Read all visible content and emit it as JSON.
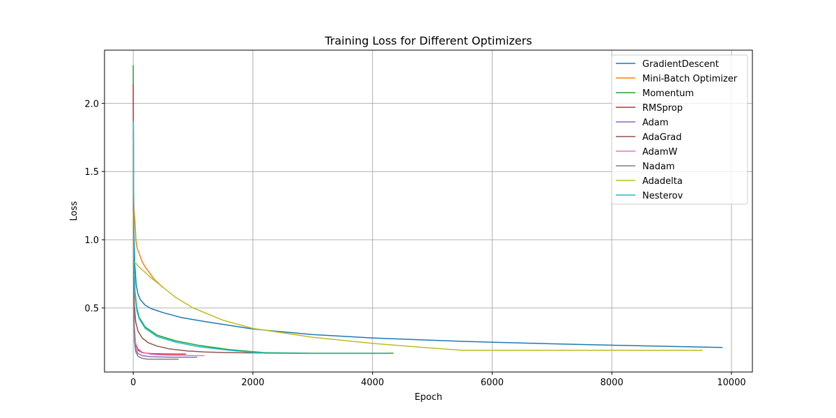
{
  "chart_data": {
    "type": "line",
    "title": "Training Loss for Different Optimizers",
    "xlabel": "Epoch",
    "ylabel": "Loss",
    "xlim": [
      -480,
      10350
    ],
    "ylim": [
      0.03,
      2.39
    ],
    "xticks": [
      0,
      2000,
      4000,
      6000,
      8000,
      10000
    ],
    "xtick_labels": [
      "0",
      "2000",
      "4000",
      "6000",
      "8000",
      "10000"
    ],
    "yticks": [
      0.5,
      1.0,
      1.5,
      2.0
    ],
    "ytick_labels": [
      "0.5",
      "1.0",
      "1.5",
      "2.0"
    ],
    "grid": true,
    "legend_position": "top-right",
    "series": [
      {
        "name": "GradientDescent",
        "color": "#1f77b4",
        "x": [
          0,
          10,
          25,
          50,
          80,
          120,
          200,
          300,
          500,
          800,
          1200,
          2000,
          3000,
          4000,
          5500,
          7000,
          8500,
          9850
        ],
        "y": [
          1.87,
          1.1,
          0.82,
          0.67,
          0.6,
          0.56,
          0.52,
          0.495,
          0.465,
          0.43,
          0.4,
          0.345,
          0.305,
          0.28,
          0.255,
          0.237,
          0.222,
          0.21
        ]
      },
      {
        "name": "Mini-Batch Optimizer",
        "color": "#ff7f0e",
        "x": [
          0,
          5,
          10,
          20,
          30,
          45,
          60,
          80,
          100,
          130,
          160,
          200,
          250,
          300,
          350,
          400,
          450,
          490
        ],
        "y": [
          1.5,
          1.38,
          1.25,
          1.18,
          1.12,
          1.0,
          0.95,
          0.92,
          0.9,
          0.86,
          0.83,
          0.8,
          0.77,
          0.74,
          0.71,
          0.69,
          0.67,
          0.65
        ]
      },
      {
        "name": "Momentum",
        "color": "#2ca02c",
        "x": [
          0,
          3,
          8,
          15,
          30,
          60,
          100,
          200,
          400,
          700,
          1100,
          1600,
          2200,
          3000,
          3800,
          4350
        ],
        "y": [
          2.28,
          1.6,
          1.05,
          0.8,
          0.62,
          0.5,
          0.43,
          0.36,
          0.3,
          0.26,
          0.225,
          0.195,
          0.172,
          0.168,
          0.168,
          0.168
        ]
      },
      {
        "name": "RMSprop",
        "color": "#d62728",
        "x": [
          0,
          3,
          6,
          10,
          20,
          40,
          80,
          150,
          300,
          500,
          700,
          880
        ],
        "y": [
          2.14,
          1.5,
          1.0,
          0.6,
          0.35,
          0.23,
          0.19,
          0.172,
          0.165,
          0.163,
          0.162,
          0.162
        ]
      },
      {
        "name": "Adam",
        "color": "#9467bd",
        "x": [
          0,
          3,
          6,
          10,
          20,
          40,
          80,
          150,
          300,
          500,
          700,
          900,
          1070
        ],
        "y": [
          1.7,
          1.2,
          0.8,
          0.5,
          0.3,
          0.2,
          0.165,
          0.15,
          0.142,
          0.14,
          0.139,
          0.139,
          0.139
        ]
      },
      {
        "name": "AdaGrad",
        "color": "#8c564b",
        "x": [
          0,
          5,
          10,
          20,
          40,
          80,
          150,
          250,
          400,
          600,
          900,
          1200,
          1500,
          1800,
          2130
        ],
        "y": [
          1.8,
          1.05,
          0.72,
          0.52,
          0.4,
          0.33,
          0.28,
          0.245,
          0.22,
          0.2,
          0.185,
          0.177,
          0.173,
          0.171,
          0.17
        ]
      },
      {
        "name": "AdamW",
        "color": "#e377c2",
        "x": [
          0,
          3,
          6,
          10,
          20,
          40,
          80,
          150,
          300,
          500,
          700,
          900,
          1100,
          1190
        ],
        "y": [
          1.8,
          1.3,
          0.9,
          0.55,
          0.33,
          0.24,
          0.2,
          0.175,
          0.16,
          0.155,
          0.152,
          0.151,
          0.15,
          0.15
        ]
      },
      {
        "name": "Nadam",
        "color": "#7f7f7f",
        "x": [
          0,
          3,
          6,
          10,
          20,
          40,
          80,
          150,
          250,
          400,
          600,
          760
        ],
        "y": [
          1.7,
          1.1,
          0.7,
          0.45,
          0.26,
          0.18,
          0.145,
          0.13,
          0.124,
          0.124,
          0.124,
          0.124
        ]
      },
      {
        "name": "Adadelta",
        "color": "#bcbd22",
        "x": [
          0,
          5,
          15,
          30,
          60,
          100,
          200,
          300,
          500,
          700,
          1000,
          1500,
          2000,
          3000,
          4000,
          5000,
          5500,
          7000,
          8500,
          9520
        ],
        "y": [
          1.2,
          0.9,
          0.84,
          0.83,
          0.82,
          0.8,
          0.76,
          0.72,
          0.65,
          0.58,
          0.5,
          0.41,
          0.35,
          0.285,
          0.24,
          0.205,
          0.19,
          0.19,
          0.19,
          0.19
        ]
      },
      {
        "name": "Nesterov",
        "color": "#17becf",
        "x": [
          0,
          3,
          8,
          15,
          30,
          60,
          100,
          200,
          400,
          700,
          1100,
          1600,
          2200,
          3000,
          3800,
          4250
        ],
        "y": [
          1.87,
          1.5,
          1.0,
          0.78,
          0.6,
          0.48,
          0.42,
          0.35,
          0.29,
          0.25,
          0.215,
          0.19,
          0.168,
          0.166,
          0.166,
          0.166
        ]
      }
    ]
  }
}
